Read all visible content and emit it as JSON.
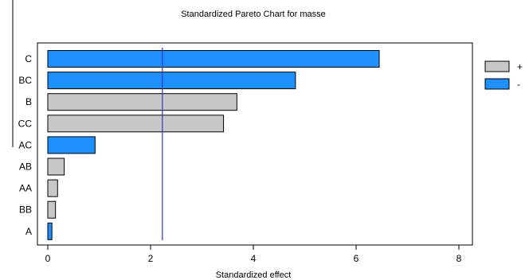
{
  "chart_data": {
    "type": "bar",
    "orientation": "horizontal",
    "title": "Standardized Pareto Chart for masse",
    "xlabel": "Standardized effect",
    "ylabel": "",
    "xlim": [
      0,
      8
    ],
    "xticks": [
      0,
      2,
      4,
      6,
      8
    ],
    "reference_line": 2.23,
    "categories": [
      "C",
      "BC",
      "B",
      "CC",
      "AC",
      "AB",
      "AA",
      "BB",
      "A"
    ],
    "values": [
      6.45,
      4.82,
      3.68,
      3.42,
      0.92,
      0.32,
      0.19,
      0.15,
      0.08
    ],
    "signs": [
      "-",
      "-",
      "+",
      "+",
      "-",
      "+",
      "+",
      "+",
      "-"
    ],
    "legend": [
      {
        "sign": "+",
        "label": "+",
        "color": "#c8c8c8"
      },
      {
        "sign": "-",
        "label": "-",
        "color": "#1e90ff"
      }
    ],
    "colors": {
      "positive": "#c8c8c8",
      "negative": "#1e90ff",
      "reference": "#3333cc"
    },
    "grid": false,
    "legend_position": "right"
  }
}
